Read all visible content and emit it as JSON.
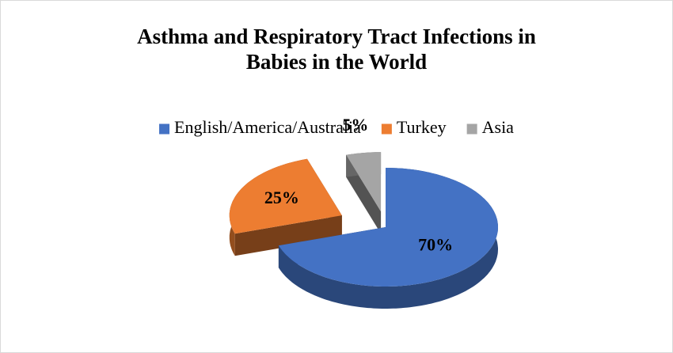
{
  "chart_data": {
    "type": "pie3d",
    "title": "Asthma and Respiratory Tract Infections in Babies in the World",
    "categories": [
      "English/America/Australia",
      "Turkey",
      "Asia"
    ],
    "values": [
      70,
      25,
      5
    ],
    "value_labels": [
      "70%",
      "25%",
      "5%"
    ],
    "colors": [
      "#4472c4",
      "#ed7d31",
      "#a5a5a5"
    ],
    "legend": "top"
  }
}
